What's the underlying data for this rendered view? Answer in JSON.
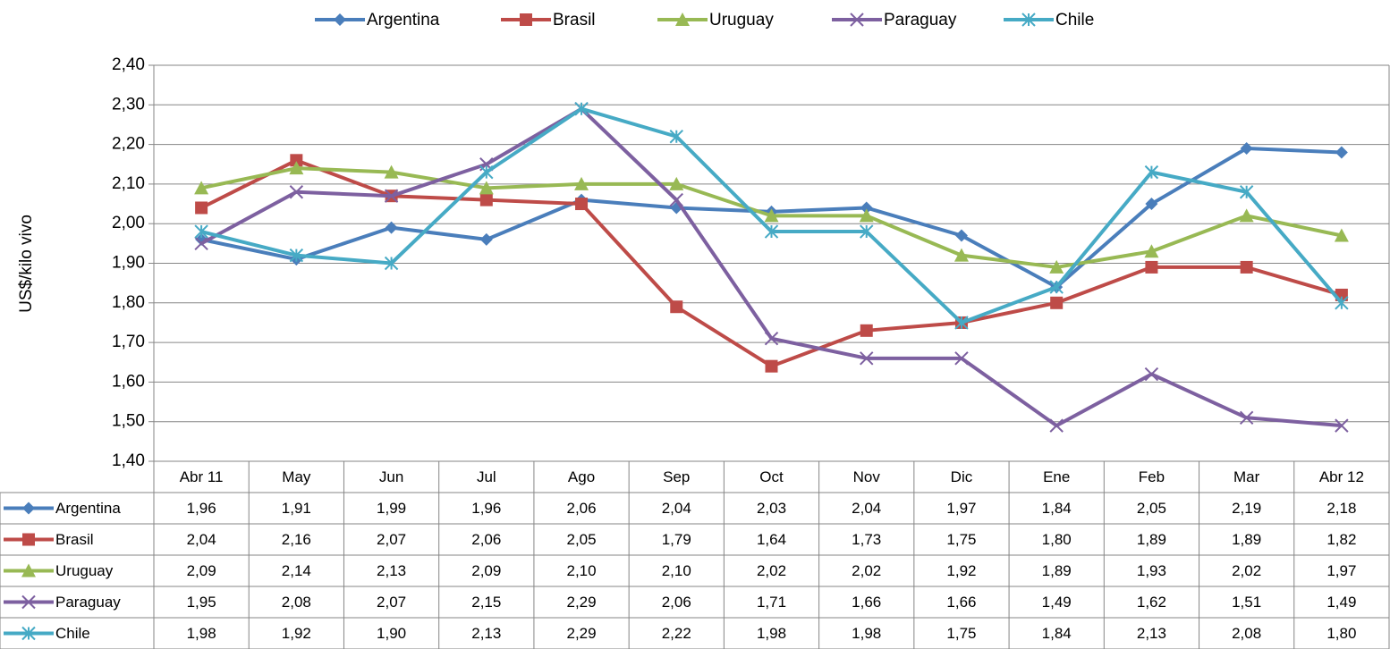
{
  "chart_data": {
    "type": "line",
    "y_label": "US$/kilo vivo",
    "categories": [
      "Abr 11",
      "May",
      "Jun",
      "Jul",
      "Ago",
      "Sep",
      "Oct",
      "Nov",
      "Dic",
      "Ene",
      "Feb",
      "Mar",
      "Abr 12"
    ],
    "ylim": [
      1.4,
      2.4
    ],
    "yticks": [
      {
        "value": 1.4,
        "label": "1,40"
      },
      {
        "value": 1.5,
        "label": "1,50"
      },
      {
        "value": 1.6,
        "label": "1,60"
      },
      {
        "value": 1.7,
        "label": "1,70"
      },
      {
        "value": 1.8,
        "label": "1,80"
      },
      {
        "value": 1.9,
        "label": "1,90"
      },
      {
        "value": 2.0,
        "label": "2,00"
      },
      {
        "value": 2.1,
        "label": "2,10"
      },
      {
        "value": 2.2,
        "label": "2,20"
      },
      {
        "value": 2.3,
        "label": "2,30"
      },
      {
        "value": 2.4,
        "label": "2,40"
      }
    ],
    "grid": true,
    "legend": "top",
    "series": [
      {
        "name": "Argentina",
        "color": "#4a7ebb",
        "marker": "diamond",
        "values": [
          1.96,
          1.91,
          1.99,
          1.96,
          2.06,
          2.04,
          2.03,
          2.04,
          1.97,
          1.84,
          2.05,
          2.19,
          2.18
        ],
        "value_labels": [
          "1,96",
          "1,91",
          "1,99",
          "1,96",
          "2,06",
          "2,04",
          "2,03",
          "2,04",
          "1,97",
          "1,84",
          "2,05",
          "2,19",
          "2,18"
        ]
      },
      {
        "name": "Brasil",
        "color": "#be4b48",
        "marker": "square",
        "values": [
          2.04,
          2.16,
          2.07,
          2.06,
          2.05,
          1.79,
          1.64,
          1.73,
          1.75,
          1.8,
          1.89,
          1.89,
          1.82
        ],
        "value_labels": [
          "2,04",
          "2,16",
          "2,07",
          "2,06",
          "2,05",
          "1,79",
          "1,64",
          "1,73",
          "1,75",
          "1,80",
          "1,89",
          "1,89",
          "1,82"
        ]
      },
      {
        "name": "Uruguay",
        "color": "#98b954",
        "marker": "triangle",
        "values": [
          2.09,
          2.14,
          2.13,
          2.09,
          2.1,
          2.1,
          2.02,
          2.02,
          1.92,
          1.89,
          1.93,
          2.02,
          1.97
        ],
        "value_labels": [
          "2,09",
          "2,14",
          "2,13",
          "2,09",
          "2,10",
          "2,10",
          "2,02",
          "2,02",
          "1,92",
          "1,89",
          "1,93",
          "2,02",
          "1,97"
        ]
      },
      {
        "name": "Paraguay",
        "color": "#7d60a0",
        "marker": "x",
        "values": [
          1.95,
          2.08,
          2.07,
          2.15,
          2.29,
          2.06,
          1.71,
          1.66,
          1.66,
          1.49,
          1.62,
          1.51,
          1.49
        ],
        "value_labels": [
          "1,95",
          "2,08",
          "2,07",
          "2,15",
          "2,29",
          "2,06",
          "1,71",
          "1,66",
          "1,66",
          "1,49",
          "1,62",
          "1,51",
          "1,49"
        ]
      },
      {
        "name": "Chile",
        "color": "#46aac5",
        "marker": "star",
        "values": [
          1.98,
          1.92,
          1.9,
          2.13,
          2.29,
          2.22,
          1.98,
          1.98,
          1.75,
          1.84,
          2.13,
          2.08,
          1.8
        ],
        "value_labels": [
          "1,98",
          "1,92",
          "1,90",
          "2,13",
          "2,29",
          "2,22",
          "1,98",
          "1,98",
          "1,75",
          "1,84",
          "2,13",
          "2,08",
          "1,80"
        ]
      }
    ]
  }
}
